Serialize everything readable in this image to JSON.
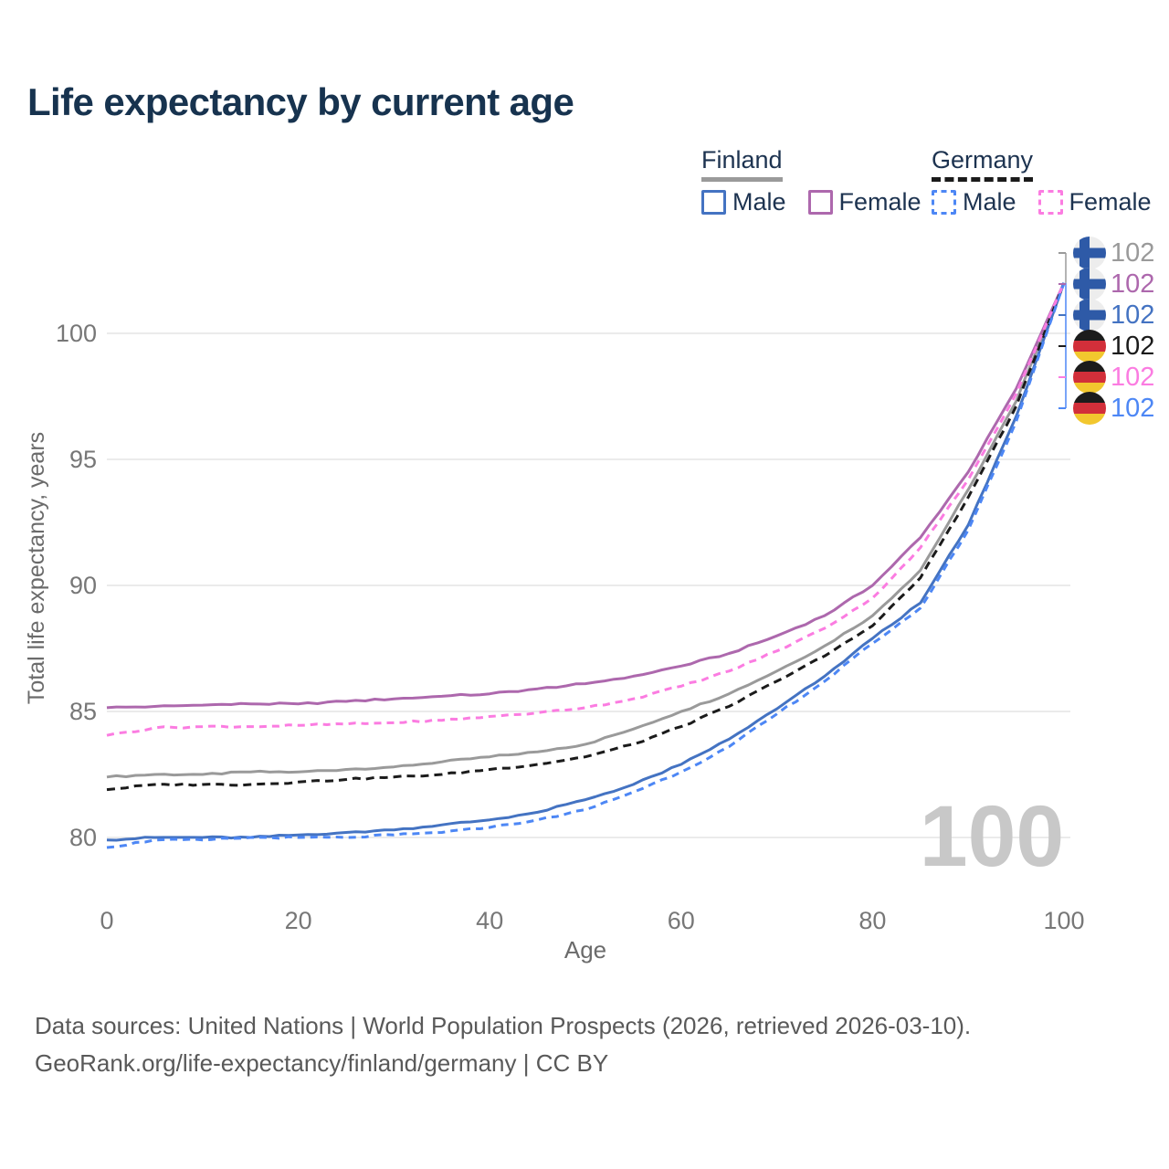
{
  "title": "Life expectancy by current age",
  "legend": {
    "groups": [
      {
        "name": "Finland",
        "line_style": "solid",
        "underline_color": "#9a9a9a",
        "items": [
          {
            "label": "Male",
            "color": "#4473c2",
            "dashed": false
          },
          {
            "label": "Female",
            "color": "#ad68ad",
            "dashed": false
          }
        ]
      },
      {
        "name": "Germany",
        "line_style": "dashed",
        "underline_color": "#1b1b1b",
        "items": [
          {
            "label": "Male",
            "color": "#4d87f5",
            "dashed": true
          },
          {
            "label": "Female",
            "color": "#fb7ce1",
            "dashed": true
          }
        ]
      }
    ]
  },
  "chart_data": {
    "type": "line",
    "title": "Life expectancy by current age",
    "xlabel": "Age",
    "ylabel": "Total life expectancy, years",
    "xlim": [
      0,
      100
    ],
    "ylim": [
      78.5,
      103.5
    ],
    "xticks": [
      0,
      20,
      40,
      60,
      80,
      100
    ],
    "yticks": [
      80,
      85,
      90,
      95,
      100
    ],
    "grid": "horizontal-only",
    "legend_position": "top-right",
    "ages": [
      0,
      5,
      10,
      15,
      20,
      25,
      30,
      35,
      40,
      45,
      50,
      55,
      60,
      65,
      70,
      75,
      80,
      85,
      90,
      95,
      100
    ],
    "series": [
      {
        "name": "Finland — All",
        "country": "Finland",
        "sex": "all",
        "flag": "fi",
        "color": "#9a9a9a",
        "dash": null,
        "values": [
          82.4,
          82.5,
          82.5,
          82.6,
          82.6,
          82.7,
          82.8,
          83.0,
          83.2,
          83.4,
          83.7,
          84.3,
          85.0,
          85.7,
          86.6,
          87.6,
          88.8,
          90.6,
          93.8,
          97.3,
          102.0
        ],
        "end_label": "102"
      },
      {
        "name": "Finland — Female",
        "country": "Finland",
        "sex": "female",
        "flag": "fi",
        "color": "#ad68ad",
        "dash": null,
        "values": [
          85.15,
          85.2,
          85.25,
          85.3,
          85.3,
          85.4,
          85.5,
          85.6,
          85.7,
          85.9,
          86.1,
          86.4,
          86.8,
          87.3,
          88.0,
          88.8,
          90.0,
          91.9,
          94.5,
          97.8,
          102.0
        ],
        "end_label": "102"
      },
      {
        "name": "Finland — Male",
        "country": "Finland",
        "sex": "male",
        "flag": "fi",
        "color": "#4473c2",
        "dash": null,
        "values": [
          79.9,
          80.0,
          80.0,
          80.0,
          80.1,
          80.2,
          80.3,
          80.5,
          80.7,
          81.0,
          81.5,
          82.1,
          82.9,
          83.9,
          85.1,
          86.4,
          87.9,
          89.3,
          92.4,
          96.7,
          102.0
        ],
        "end_label": "102"
      },
      {
        "name": "Germany — All",
        "country": "Germany",
        "sex": "all",
        "flag": "de",
        "color": "#1b1b1b",
        "dash": "9 6",
        "values": [
          81.9,
          82.1,
          82.1,
          82.1,
          82.2,
          82.3,
          82.4,
          82.5,
          82.7,
          82.9,
          83.2,
          83.7,
          84.4,
          85.2,
          86.2,
          87.2,
          88.4,
          90.3,
          93.5,
          97.1,
          102.0
        ],
        "end_label": "102"
      },
      {
        "name": "Germany — Female",
        "country": "Germany",
        "sex": "female",
        "flag": "de",
        "color": "#fb7ce1",
        "dash": "8 6",
        "values": [
          84.05,
          84.35,
          84.4,
          84.4,
          84.45,
          84.5,
          84.55,
          84.65,
          84.8,
          84.95,
          85.15,
          85.5,
          86.0,
          86.6,
          87.4,
          88.3,
          89.5,
          91.5,
          94.2,
          97.6,
          102.0
        ],
        "end_label": "102"
      },
      {
        "name": "Germany — Male",
        "country": "Germany",
        "sex": "male",
        "flag": "de",
        "color": "#4d87f5",
        "dash": "8 6",
        "values": [
          79.6,
          79.9,
          79.9,
          80.0,
          80.0,
          80.0,
          80.1,
          80.2,
          80.4,
          80.7,
          81.1,
          81.8,
          82.6,
          83.6,
          84.9,
          86.2,
          87.7,
          89.1,
          92.2,
          96.5,
          102.0
        ],
        "end_label": "102"
      }
    ]
  },
  "watermark": "100",
  "footer": {
    "line1": "Data sources: United Nations | World Population Prospects (2026, retrieved 2026-03-10).",
    "line2": "GeoRank.org/life-expectancy/finland/germany | CC BY"
  },
  "colors": {
    "title": "#17334f",
    "legend_text": "#1d3350",
    "tick_label": "#777777",
    "axis_title": "#6b6b6b",
    "gridline": "#ebebeb",
    "watermark": "#c8c8c8",
    "finland_flag_cross": "#2e5aa7",
    "finland_flag_bg": "#ededed",
    "germany_flag_black": "#1c1c1c",
    "germany_flag_red": "#d22f3a",
    "germany_flag_gold": "#f2c72e"
  }
}
